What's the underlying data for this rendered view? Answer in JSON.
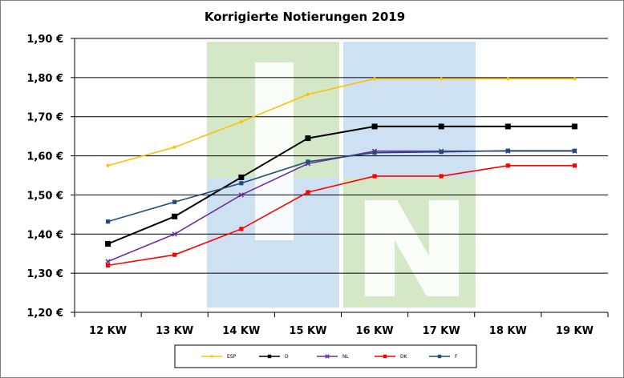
{
  "chart_data": {
    "type": "line",
    "title": "Korrigierte Notierungen 2019",
    "categories": [
      "12 KW",
      "13 KW",
      "14 KW",
      "15 KW",
      "16 KW",
      "17 KW",
      "18 KW",
      "19 KW"
    ],
    "ylim": [
      1.2,
      1.9
    ],
    "yticks": [
      "1,20 €",
      "1,30 €",
      "1,40 €",
      "1,50 €",
      "1,60 €",
      "1,70 €",
      "1,80 €",
      "1,90 €"
    ],
    "grid": true,
    "legend_position": "bottom",
    "series": [
      {
        "name": "ESP",
        "color": "#FFC000",
        "marker": "diamond",
        "values": [
          1.575,
          1.622,
          1.687,
          1.757,
          1.797,
          1.797,
          1.797,
          1.797
        ]
      },
      {
        "name": "D",
        "color": "#000000",
        "marker": "square",
        "values": [
          1.375,
          1.445,
          1.545,
          1.645,
          1.675,
          1.675,
          1.675,
          1.675
        ]
      },
      {
        "name": "NL",
        "color": "#7030A0",
        "marker": "cross",
        "values": [
          1.33,
          1.4,
          1.5,
          1.58,
          1.612,
          1.612,
          1.612,
          1.612
        ]
      },
      {
        "name": "DK",
        "color": "#FF0000",
        "marker": "square",
        "values": [
          1.32,
          1.347,
          1.413,
          1.507,
          1.548,
          1.548,
          1.575,
          1.575
        ]
      },
      {
        "name": "F",
        "color": "#1F4E79",
        "marker": "square",
        "values": [
          1.432,
          1.482,
          1.53,
          1.585,
          1.608,
          1.61,
          1.613,
          1.613
        ]
      }
    ]
  },
  "watermark": {
    "colors": {
      "green": "#C6E0B4",
      "blue": "#BDD7EE"
    }
  }
}
